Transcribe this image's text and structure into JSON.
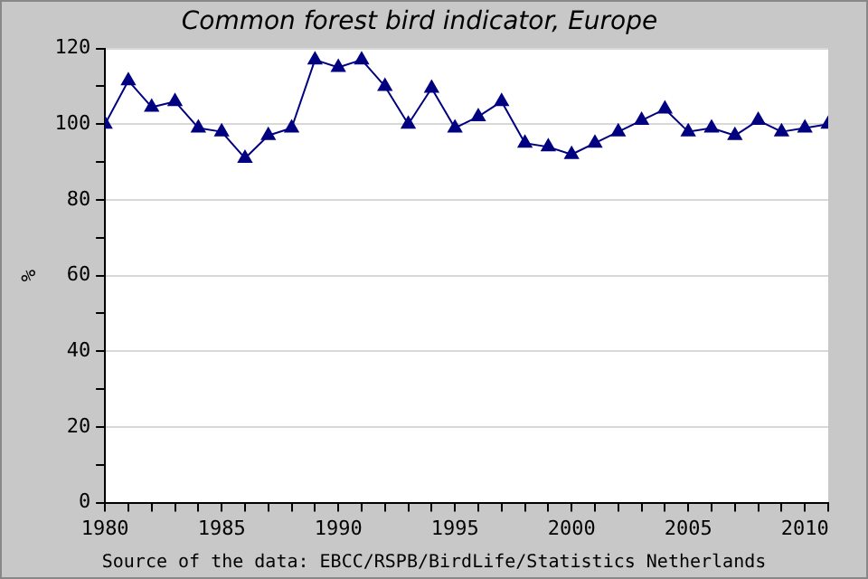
{
  "chart_data": {
    "type": "line",
    "title": "Common forest bird indicator, Europe",
    "ylabel": "%",
    "annotations": [
      "Source of the data: EBCC/RSPB/BirdLife/Statistics Netherlands"
    ],
    "x": [
      1980,
      1981,
      1982,
      1983,
      1984,
      1985,
      1986,
      1987,
      1988,
      1989,
      1990,
      1991,
      1992,
      1993,
      1994,
      1995,
      1996,
      1997,
      1998,
      1999,
      2000,
      2001,
      2002,
      2003,
      2004,
      2005,
      2006,
      2007,
      2008,
      2009,
      2010,
      2011
    ],
    "series": [
      {
        "color": "#000080",
        "values": [
          100,
          111.5,
          104.5,
          106,
          99,
          98,
          91,
          97,
          99,
          117,
          115,
          117,
          110,
          100,
          109.5,
          99,
          102,
          106,
          95,
          94,
          92,
          95,
          98,
          101,
          104,
          98,
          99,
          97,
          101,
          98,
          99,
          100
        ]
      }
    ],
    "xlim": [
      1980,
      2011
    ],
    "xticks": [
      1980,
      {
        "value": 1981,
        "label": null
      },
      {
        "value": 1982,
        "label": null
      },
      {
        "value": 1983,
        "label": null
      },
      {
        "value": 1984,
        "label": null
      },
      1985,
      {
        "value": 1986,
        "label": null
      },
      {
        "value": 1987,
        "label": null
      },
      {
        "value": 1988,
        "label": null
      },
      {
        "value": 1989,
        "label": null
      },
      1990,
      {
        "value": 1991,
        "label": null
      },
      {
        "value": 1992,
        "label": null
      },
      {
        "value": 1993,
        "label": null
      },
      {
        "value": 1994,
        "label": null
      },
      1995,
      {
        "value": 1996,
        "label": null
      },
      {
        "value": 1997,
        "label": null
      },
      {
        "value": 1998,
        "label": null
      },
      {
        "value": 1999,
        "label": null
      },
      2000,
      {
        "value": 2001,
        "label": null
      },
      {
        "value": 2002,
        "label": null
      },
      {
        "value": 2003,
        "label": null
      },
      {
        "value": 2004,
        "label": null
      },
      2005,
      {
        "value": 2006,
        "label": null
      },
      {
        "value": 2007,
        "label": null
      },
      {
        "value": 2008,
        "label": null
      },
      {
        "value": 2009,
        "label": null
      },
      2010,
      {
        "value": 2011,
        "label": null
      }
    ],
    "ylim": [
      0,
      120
    ],
    "yticks": [
      0,
      {
        "value": 10,
        "label": null
      },
      20,
      {
        "value": 30,
        "label": null
      },
      40,
      {
        "value": 50,
        "label": null
      },
      60,
      {
        "value": 70,
        "label": null
      },
      80,
      {
        "value": 90,
        "label": null
      },
      100,
      {
        "value": 110,
        "label": null
      },
      120
    ],
    "grid": "y",
    "marker": "triangle",
    "line_style": "solid",
    "legend": false
  }
}
